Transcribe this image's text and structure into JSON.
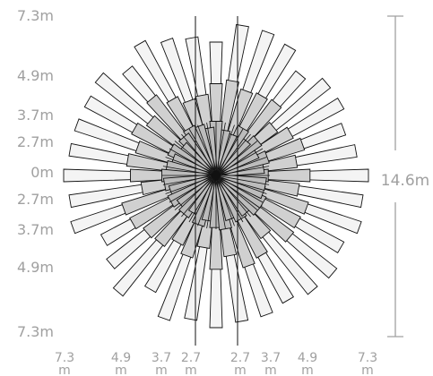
{
  "chart_data": {
    "type": "radial-bar",
    "ytick_labels": [
      "7.3m",
      "4.9m",
      "3.7m",
      "2.7m",
      "0m",
      "2.7m",
      "3.7m",
      "4.9m",
      "7.3m"
    ],
    "xtick_labels": [
      {
        "value": "7.3",
        "unit": "m"
      },
      {
        "value": "4.9",
        "unit": "m"
      },
      {
        "value": "3.7",
        "unit": "m"
      },
      {
        "value": "2.7",
        "unit": "m"
      },
      {
        "value": "2.7",
        "unit": "m"
      },
      {
        "value": "3.7",
        "unit": "m"
      },
      {
        "value": "4.9",
        "unit": "m"
      },
      {
        "value": "7.3",
        "unit": "m"
      }
    ],
    "dimension_label": "14.6m",
    "radial_max": 7.3,
    "grid": false,
    "ring_levels": [
      2.7,
      3.7,
      4.9,
      7.3
    ],
    "ray_angles_deg": [
      0,
      10,
      20,
      30,
      40,
      50,
      60,
      70,
      80,
      90,
      100,
      110,
      120,
      130,
      140,
      150,
      160,
      170,
      180,
      190,
      200,
      210,
      220,
      230,
      240,
      250,
      260,
      270,
      280,
      290,
      300,
      310,
      320,
      330,
      340,
      350
    ],
    "series": [
      {
        "values": [
          7.3,
          6.8,
          6.5,
          6.9,
          6.9,
          6.3,
          7.1,
          7.3,
          7.3,
          6.4,
          6.7,
          6.9,
          7.3,
          6.6,
          7.3,
          7.1,
          7.1,
          7.1,
          7.3,
          7.1,
          7.3,
          6.2,
          6.6,
          7.3,
          6.3,
          7.3,
          7.0,
          7.3,
          7.1,
          7.1,
          6.9,
          7.2,
          7.3,
          6.9,
          7.3,
          7.1
        ],
        "color": "#f4f4f4"
      },
      {
        "values": [
          4.5,
          3.9,
          4.4,
          4.1,
          3.6,
          4.5,
          4.4,
          4.3,
          4.6,
          4.4,
          3.9,
          3.8,
          4.2,
          4.8,
          4.1,
          4.5,
          4.0,
          4.3,
          4.1,
          3.6,
          4.7,
          4.6,
          4.3,
          4.2,
          3.7,
          4.1,
          3.5,
          4.5,
          3.9,
          4.6,
          4.4,
          3.7,
          4.6,
          4.5,
          4.6,
          4.0
        ],
        "color": "#d0d0d0"
      },
      {
        "values": [
          2.5,
          2.3,
          2.6,
          2.2,
          2.6,
          2.2,
          2.6,
          2.1,
          2.2,
          2.6,
          2.3,
          2.5,
          2.6,
          2.4,
          2.1,
          2.5,
          2.2,
          2.4,
          2.6,
          2.5,
          2.3,
          2.5,
          2.2,
          2.4,
          2.1,
          2.5,
          2.2,
          2.5,
          2.6,
          2.2,
          2.4,
          2.3,
          2.6,
          2.6,
          2.4,
          2.4
        ],
        "color": "#bcbcbc"
      }
    ],
    "colors": {
      "stroke": "#111111",
      "axis": "#a0a0a0"
    }
  }
}
